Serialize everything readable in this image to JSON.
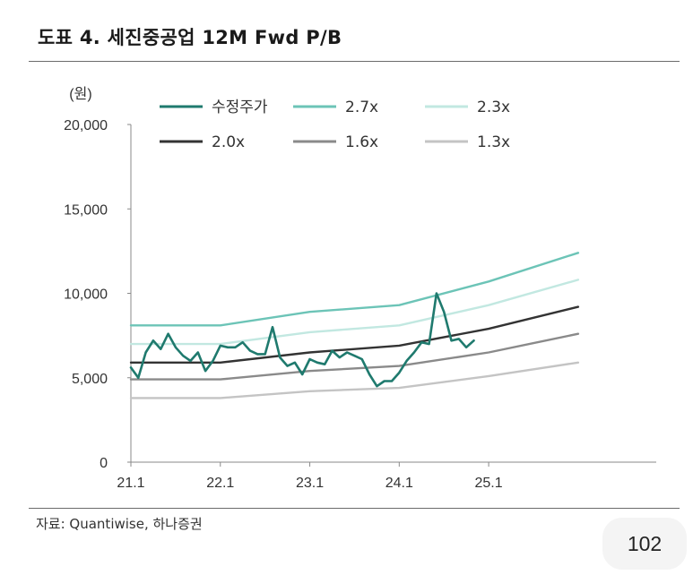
{
  "header": {
    "title": "도표 4. 세진중공업 12M Fwd P/B"
  },
  "footer": {
    "source": "자료: Quantiwise, 하나증권",
    "page_number": "102"
  },
  "chart_data": {
    "type": "line",
    "title": "도표 4. 세진중공업 12M Fwd P/B",
    "unit_label": "(원)",
    "xlabel": "",
    "ylabel": "",
    "ylim": [
      0,
      20000
    ],
    "xlim": [
      0,
      70
    ],
    "x_ticks": [
      {
        "label": "21.1",
        "x": 0
      },
      {
        "label": "22.1",
        "x": 12
      },
      {
        "label": "23.1",
        "x": 24
      },
      {
        "label": "24.1",
        "x": 36
      },
      {
        "label": "25.1",
        "x": 48
      }
    ],
    "y_ticks": [
      {
        "label": "0",
        "value": 0
      },
      {
        "label": "5,000",
        "value": 5000
      },
      {
        "label": "10,000",
        "value": 10000
      },
      {
        "label": "15,000",
        "value": 15000
      },
      {
        "label": "20,000",
        "value": 20000
      }
    ],
    "grid": false,
    "legend_position": "top",
    "series": [
      {
        "name": "수정주가",
        "color": "#1f7a6e",
        "width": 2.6,
        "points": [
          [
            0,
            5600
          ],
          [
            1,
            5000
          ],
          [
            2,
            6500
          ],
          [
            3,
            7200
          ],
          [
            4,
            6700
          ],
          [
            5,
            7600
          ],
          [
            6,
            6800
          ],
          [
            7,
            6300
          ],
          [
            8,
            6000
          ],
          [
            9,
            6500
          ],
          [
            10,
            5400
          ],
          [
            11,
            6000
          ],
          [
            12,
            6900
          ],
          [
            13,
            6800
          ],
          [
            14,
            6800
          ],
          [
            15,
            7100
          ],
          [
            16,
            6600
          ],
          [
            17,
            6400
          ],
          [
            18,
            6400
          ],
          [
            19,
            8000
          ],
          [
            20,
            6200
          ],
          [
            21,
            5700
          ],
          [
            22,
            5900
          ],
          [
            23,
            5200
          ],
          [
            24,
            6100
          ],
          [
            25,
            5900
          ],
          [
            26,
            5800
          ],
          [
            27,
            6600
          ],
          [
            28,
            6200
          ],
          [
            29,
            6500
          ],
          [
            30,
            6300
          ],
          [
            31,
            6100
          ],
          [
            32,
            5200
          ],
          [
            33,
            4500
          ],
          [
            34,
            4800
          ],
          [
            35,
            4800
          ],
          [
            36,
            5300
          ],
          [
            37,
            6000
          ],
          [
            38,
            6500
          ],
          [
            39,
            7100
          ],
          [
            40,
            7000
          ],
          [
            41,
            10000
          ],
          [
            42,
            8900
          ],
          [
            43,
            7200
          ],
          [
            44,
            7300
          ],
          [
            45,
            6800
          ],
          [
            46,
            7200
          ]
        ]
      },
      {
        "name": "2.7x",
        "color": "#6cc4b7",
        "width": 2.4,
        "points": [
          [
            0,
            8100
          ],
          [
            12,
            8100
          ],
          [
            24,
            8900
          ],
          [
            36,
            9300
          ],
          [
            48,
            10700
          ],
          [
            60,
            12400
          ]
        ]
      },
      {
        "name": "2.3x",
        "color": "#c2e8e1",
        "width": 2.4,
        "points": [
          [
            0,
            7000
          ],
          [
            12,
            7000
          ],
          [
            24,
            7700
          ],
          [
            36,
            8100
          ],
          [
            48,
            9300
          ],
          [
            60,
            10800
          ]
        ]
      },
      {
        "name": "2.0x",
        "color": "#333333",
        "width": 2.4,
        "points": [
          [
            0,
            5900
          ],
          [
            12,
            5900
          ],
          [
            24,
            6500
          ],
          [
            36,
            6900
          ],
          [
            48,
            7900
          ],
          [
            60,
            9200
          ]
        ]
      },
      {
        "name": "1.6x",
        "color": "#8a8a8a",
        "width": 2.4,
        "points": [
          [
            0,
            4900
          ],
          [
            12,
            4900
          ],
          [
            24,
            5400
          ],
          [
            36,
            5700
          ],
          [
            48,
            6500
          ],
          [
            60,
            7600
          ]
        ]
      },
      {
        "name": "1.3x",
        "color": "#c4c4c4",
        "width": 2.4,
        "points": [
          [
            0,
            3800
          ],
          [
            12,
            3800
          ],
          [
            24,
            4200
          ],
          [
            36,
            4400
          ],
          [
            48,
            5100
          ],
          [
            60,
            5900
          ]
        ]
      }
    ]
  }
}
